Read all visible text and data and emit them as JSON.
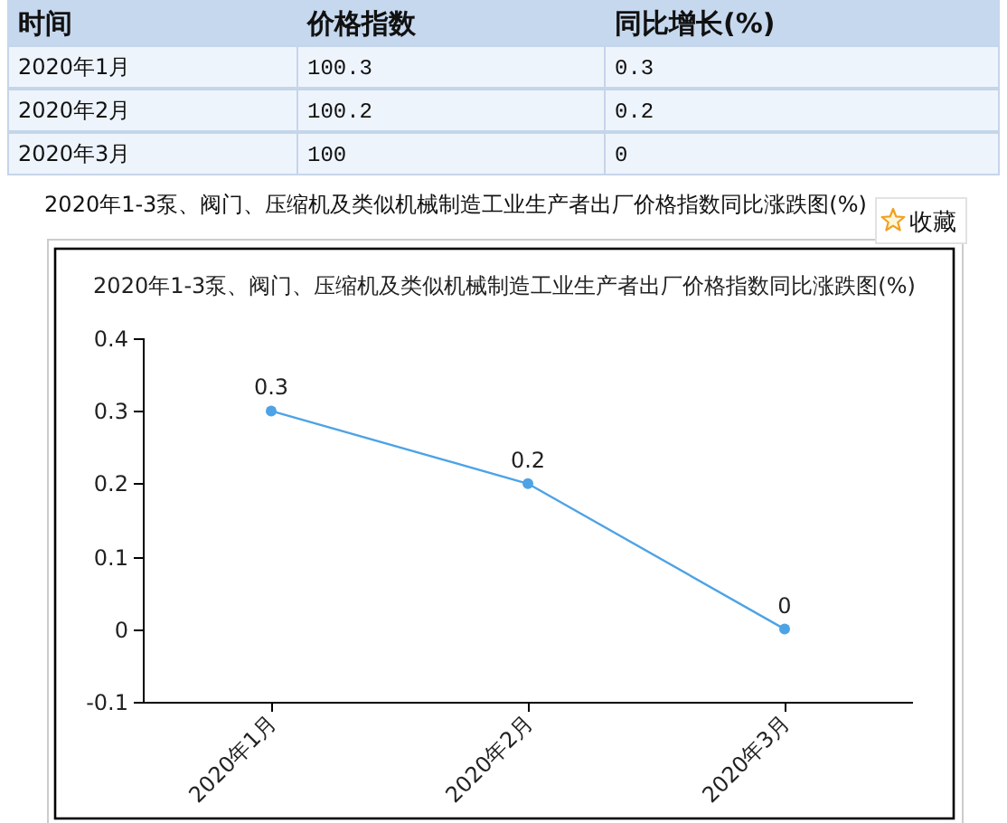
{
  "chart_data": [
    {
      "type": "other",
      "categories": [
        "时间",
        "价格指数",
        "同比增长(%)"
      ],
      "y_categories": [
        "2020年1月",
        "2020年2月",
        "2020年3月"
      ],
      "cell_labels": [
        [
          "100.3",
          "0.3"
        ],
        [
          "100.2",
          "0.2"
        ],
        [
          "100",
          "0"
        ]
      ]
    },
    {
      "type": "line",
      "title": "2020年1-3泵、阀门、压缩机及类似机械制造工业生产者出厂价格指数同比涨跌图(%)",
      "categories": [
        "2020年1月",
        "2020年2月",
        "2020年3月"
      ],
      "values": [
        0.3,
        0.2,
        0
      ],
      "color": "#4da3e5",
      "marker": "circle",
      "data_labels": true,
      "ylim": [
        -0.1,
        0.4
      ],
      "yticks": [
        -0.1,
        0,
        0.1,
        0.2,
        0.3,
        0.4
      ],
      "annotations": [
        "2020年1-3泵、阀门、压缩机及类似机械制造工业生产者出厂价格指数同比涨跌图(%)",
        "收藏"
      ]
    }
  ]
}
